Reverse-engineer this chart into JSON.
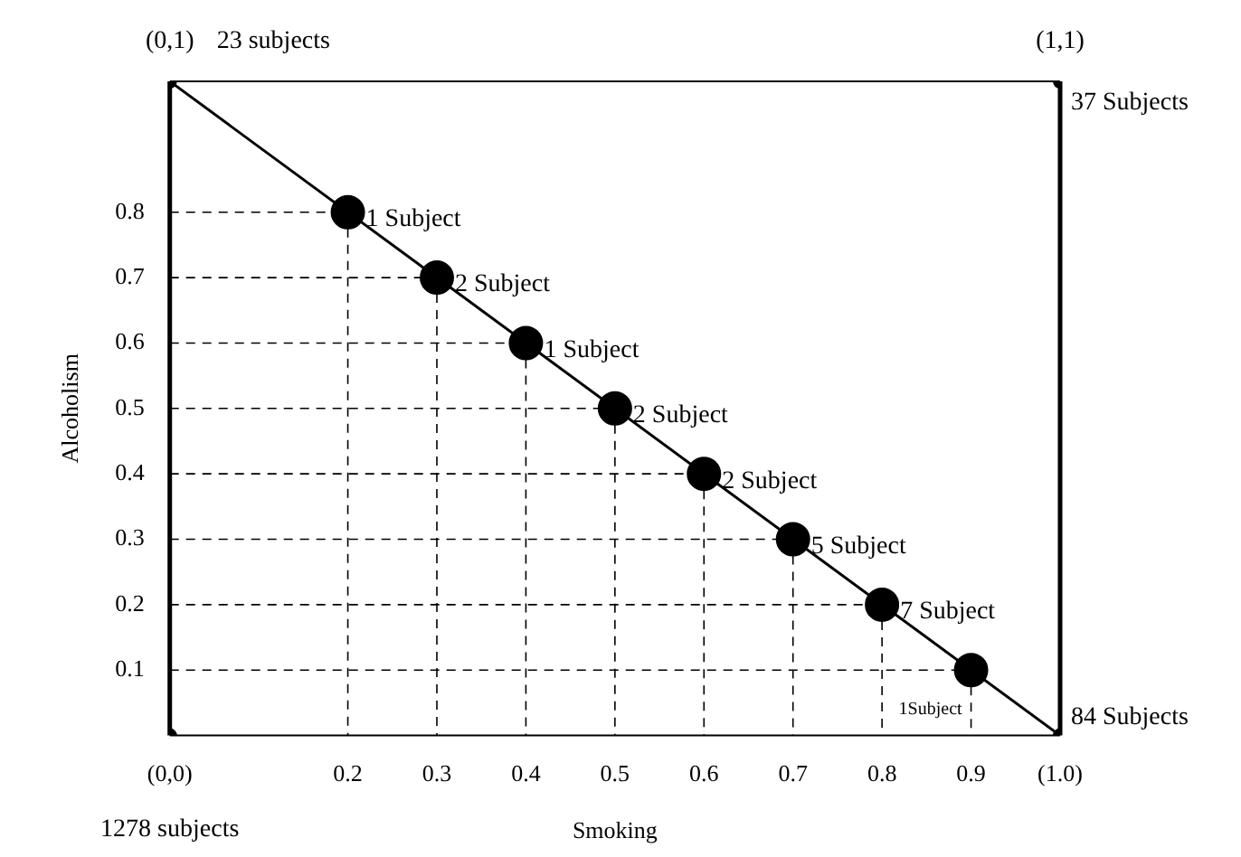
{
  "chart_data": {
    "type": "scatter",
    "xlabel": "Smoking",
    "ylabel": "Alcoholism",
    "xlim": [
      0,
      1
    ],
    "ylim": [
      0,
      1
    ],
    "xticks": [
      {
        "value": 0,
        "label": "(0,0)"
      },
      0.2,
      0.3,
      0.4,
      0.5,
      0.6,
      0.7,
      0.8,
      0.9,
      {
        "value": 1,
        "label": "(1.0)"
      }
    ],
    "yticks": [
      0.1,
      0.2,
      0.3,
      0.4,
      0.5,
      0.6,
      0.7,
      0.8
    ],
    "grid": true,
    "legend": false,
    "series": [
      {
        "color": "#000000",
        "marker": "circle",
        "x": [
          0.2,
          0.3,
          0.4,
          0.5,
          0.6,
          0.7,
          0.8,
          0.9
        ],
        "values": [
          0.8,
          0.7,
          0.6,
          0.5,
          0.4,
          0.3,
          0.2,
          0.1
        ]
      },
      {
        "color": "#000000",
        "marker": "circle",
        "x": [
          0,
          0,
          1,
          1
        ],
        "values": [
          0,
          1,
          1,
          0
        ]
      },
      {
        "type": "line",
        "color": "#000000",
        "marker": "none",
        "x": [
          0,
          1
        ],
        "values": [
          1,
          0
        ]
      }
    ],
    "annotations": [
      {
        "text": "1 Subject",
        "x": 0.2,
        "y": 0.8
      },
      {
        "text": "2 Subject",
        "x": 0.3,
        "y": 0.7
      },
      {
        "text": "1 Subject",
        "x": 0.4,
        "y": 0.6
      },
      {
        "text": "2 Subject",
        "x": 0.5,
        "y": 0.5
      },
      {
        "text": "2 Subject",
        "x": 0.6,
        "y": 0.4
      },
      {
        "text": "5 Subject",
        "x": 0.7,
        "y": 0.3
      },
      {
        "text": "7 Subject",
        "x": 0.8,
        "y": 0.2
      },
      {
        "text": "1Subject",
        "x": 0.9,
        "y": 0.1
      },
      "1278 subjects",
      {
        "text": "(0,1)",
        "x": 0,
        "y": 1
      },
      {
        "text": "23 subjects",
        "x": 0,
        "y": 1
      },
      {
        "text": "(1,1)",
        "x": 1,
        "y": 1
      },
      {
        "text": "37 Subjects",
        "x": 1,
        "y": 1
      },
      {
        "text": "84 Subjects",
        "x": 1,
        "y": 0
      }
    ]
  }
}
